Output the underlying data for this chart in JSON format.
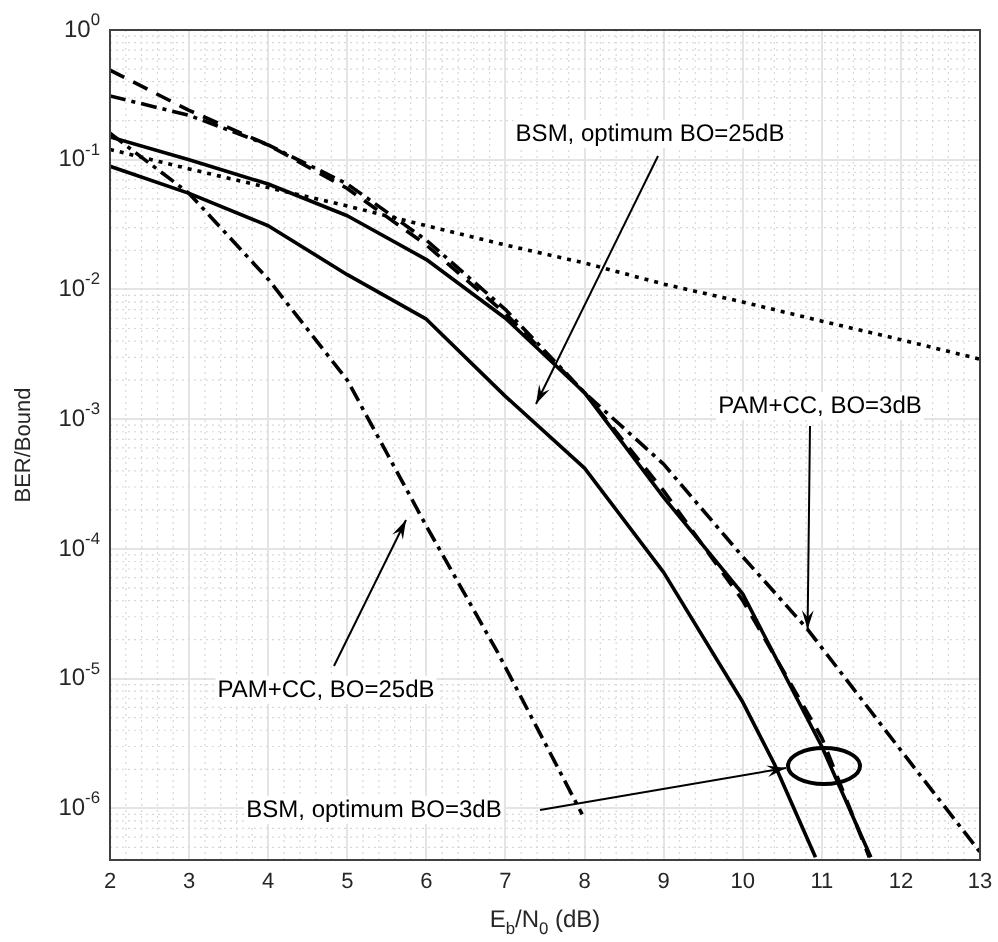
{
  "chart_data": {
    "type": "line",
    "xlabel": "E$_{b}$/N$_{0}$ (dB)",
    "ylabel": "BER/Bound",
    "log": "y",
    "grid": true,
    "legend": false,
    "marker": "none",
    "xlim": [
      2,
      13
    ],
    "xticks": [
      2,
      3,
      4,
      5,
      6,
      7,
      8,
      9,
      10,
      11,
      12,
      13
    ],
    "ylim": [
      4e-07,
      1
    ],
    "yticks": [
      {
        "value": 1e-06,
        "label": "10$^{-6}$"
      },
      {
        "value": 1e-05,
        "label": "10$^{-5}$"
      },
      {
        "value": 0.0001,
        "label": "10$^{-4}$"
      },
      {
        "value": 0.001,
        "label": "10$^{-3}$"
      },
      {
        "value": 0.01,
        "label": "10$^{-2}$"
      },
      {
        "value": 0.1,
        "label": "10$^{-1}$"
      },
      {
        "value": 1,
        "label": "10$^{0}$"
      }
    ],
    "series": [
      {
        "color": "#000000",
        "line_style": "dotted",
        "x": [
          2,
          3,
          4,
          5,
          6,
          7,
          8,
          9,
          10,
          11,
          12,
          13
        ],
        "values": [
          0.12,
          0.085,
          0.061,
          0.044,
          0.031,
          0.022,
          0.016,
          0.011,
          0.008,
          0.0057,
          0.0041,
          0.0029
        ]
      },
      {
        "color": "#000000",
        "line_style": "dashed",
        "x": [
          2,
          3,
          4,
          5,
          6,
          7,
          8,
          9,
          10,
          11,
          11.6
        ],
        "values": [
          0.49,
          0.24,
          0.13,
          0.06,
          0.022,
          0.0065,
          0.0016,
          0.00028,
          4e-05,
          3.5e-06,
          4.2e-07
        ]
      },
      {
        "color": "#000000",
        "line_style": "dashdot",
        "x": [
          2,
          3,
          4,
          5,
          6,
          7,
          8,
          9,
          10,
          10.82,
          12,
          13
        ],
        "values": [
          0.31,
          0.22,
          0.13,
          0.065,
          0.024,
          0.007,
          0.0016,
          0.00045,
          8.7e-05,
          2.4e-05,
          2.8e-06,
          4.6e-07
        ]
      },
      {
        "color": "#000000",
        "line_style": "solid",
        "x": [
          2,
          3,
          4,
          5,
          6,
          7,
          8,
          9,
          10,
          11,
          11.62
        ],
        "values": [
          0.15,
          0.1,
          0.065,
          0.037,
          0.017,
          0.006,
          0.0016,
          0.00025,
          4.5e-05,
          3e-06,
          4.2e-07
        ]
      },
      {
        "color": "#000000",
        "line_style": "solid",
        "x": [
          2,
          3,
          4,
          5,
          6,
          7,
          8,
          9,
          10,
          10.4,
          10.92
        ],
        "values": [
          0.089,
          0.055,
          0.031,
          0.013,
          0.0059,
          0.0015,
          0.00042,
          6.6e-05,
          6.6e-06,
          2.2e-06,
          4.2e-07
        ]
      },
      {
        "color": "#000000",
        "line_style": "dashdot",
        "x": [
          2,
          3,
          4,
          5,
          6,
          6.9,
          7.97
        ],
        "values": [
          0.16,
          0.055,
          0.012,
          0.002,
          0.00015,
          1.6e-05,
          9e-07
        ]
      }
    ],
    "annotations": [
      "BSM, optimum BO=25dB",
      {
        "text": "PAM+CC, BO=3dB",
        "x": 10.82,
        "y": 2.4e-05
      },
      "PAM+CC, BO=25dB",
      "BSM, optimum BO=3dB"
    ]
  }
}
